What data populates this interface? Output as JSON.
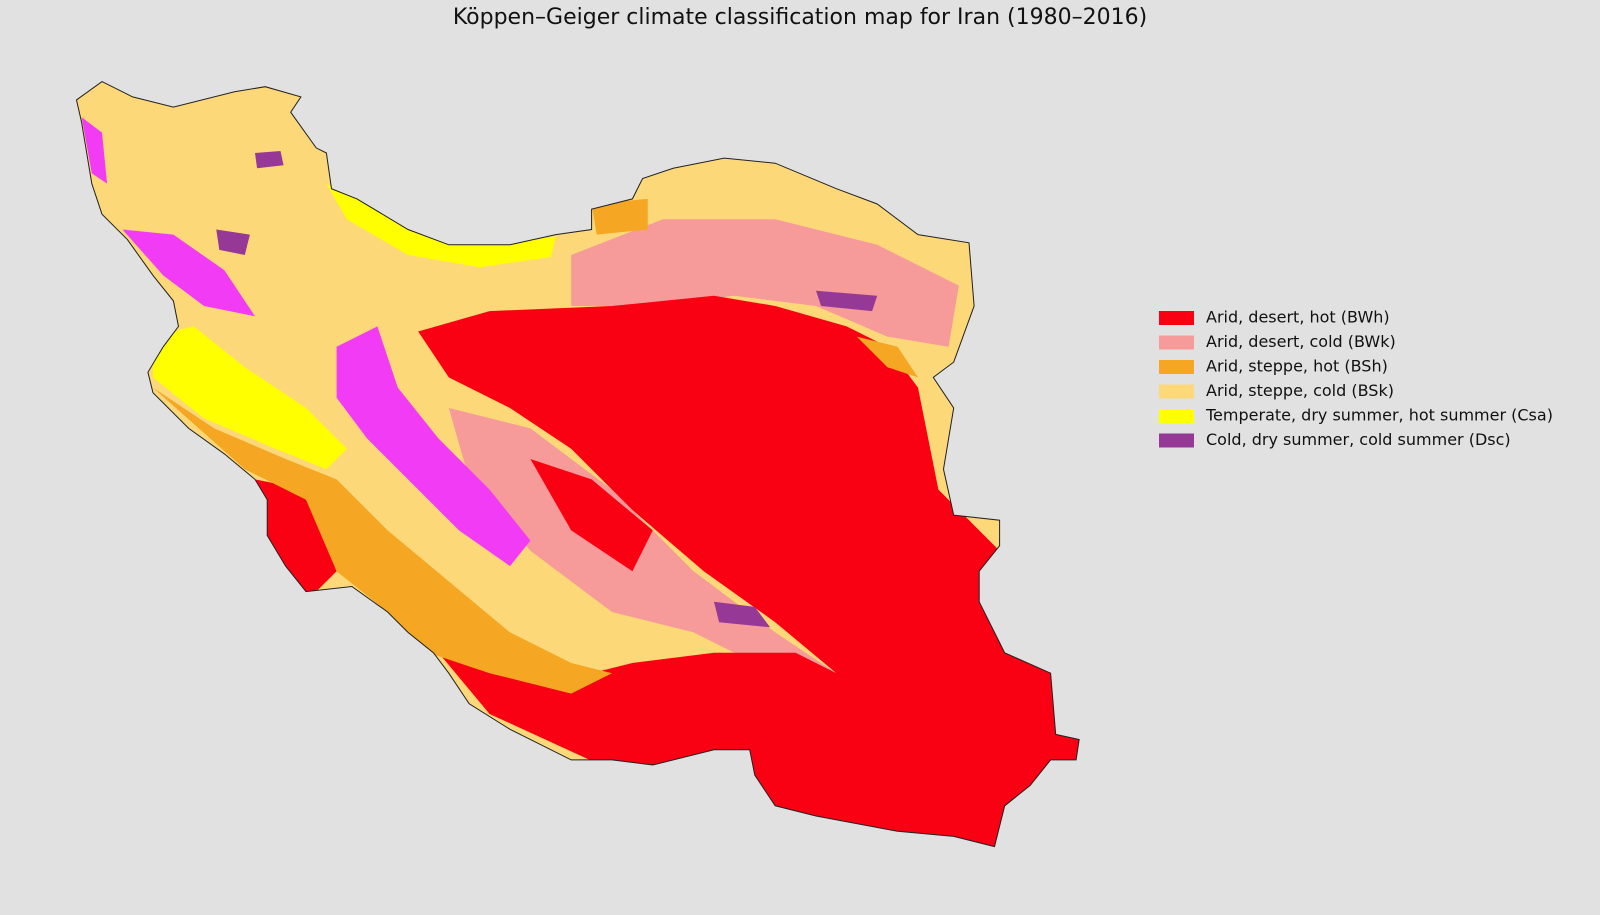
{
  "header": {
    "title": "Köppen–Geiger climate classification map for Iran (1980–2016)"
  },
  "legend": [
    {
      "label": "Arid, desert, hot (BWh)",
      "color": "#fa0013"
    },
    {
      "label": "Arid, desert, cold (BWk)",
      "color": "#f79a9a"
    },
    {
      "label": "Arid, steppe, hot (BSh)",
      "color": "#f5a623"
    },
    {
      "label": "Arid, steppe, cold (BSk)",
      "color": "#fdd878"
    },
    {
      "label": "Temperate, dry summer, hot summer (Csa)",
      "color": "#ffff00"
    },
    {
      "label": "Cold, dry summer, cold summer (Dsc)",
      "color": "#963896"
    }
  ]
}
